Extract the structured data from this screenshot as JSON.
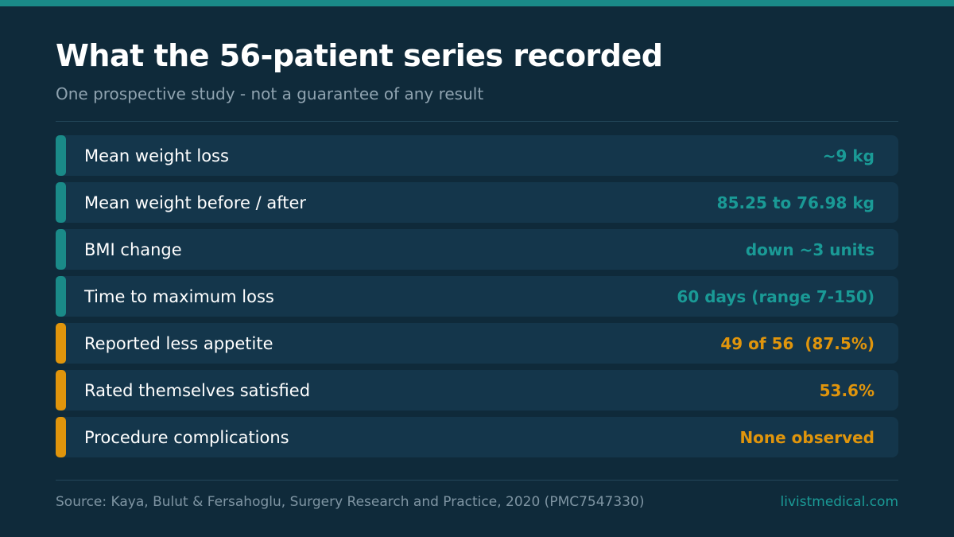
{
  "title": "What the 56-patient series recorded",
  "subtitle": "One prospective study - not a guarantee of any result",
  "colors": {
    "background": "#0f2a3a",
    "row_background": "#14364b",
    "teal": "#1a8a88",
    "teal_text": "#1a9a96",
    "amber": "#e0950c"
  },
  "stats": [
    {
      "label": "Mean weight loss",
      "value": "~9 kg",
      "accent": "teal"
    },
    {
      "label": "Mean weight before / after",
      "value": "85.25 to 76.98 kg",
      "accent": "teal"
    },
    {
      "label": "BMI change",
      "value": "down ~3 units",
      "accent": "teal"
    },
    {
      "label": "Time to maximum loss",
      "value": "60 days (range 7-150)",
      "accent": "teal"
    },
    {
      "label": "Reported less appetite",
      "value": "49 of 56  (87.5%)",
      "accent": "amber"
    },
    {
      "label": "Rated themselves satisfied",
      "value": "53.6%",
      "accent": "amber"
    },
    {
      "label": "Procedure complications",
      "value": "None observed",
      "accent": "amber"
    }
  ],
  "footer": {
    "source": "Source: Kaya, Bulut & Fersahoglu, Surgery Research and Practice, 2020 (PMC7547330)",
    "brand": "livistmedical.com"
  }
}
